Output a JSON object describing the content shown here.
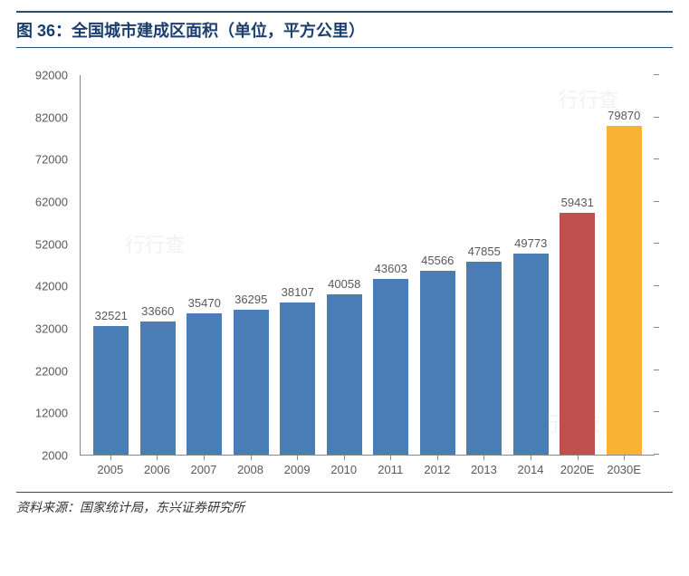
{
  "title": "图 36：全国城市建成区面积（单位，平方公里）",
  "source": "资料来源：国家统计局，东兴证券研究所",
  "chart": {
    "type": "bar",
    "categories": [
      "2005",
      "2006",
      "2007",
      "2008",
      "2009",
      "2010",
      "2011",
      "2012",
      "2013",
      "2014",
      "2020E",
      "2030E"
    ],
    "values": [
      32521,
      33660,
      35470,
      36295,
      38107,
      40058,
      43603,
      45566,
      47855,
      49773,
      59431,
      79870
    ],
    "bar_colors": [
      "#4a7db5",
      "#4a7db5",
      "#4a7db5",
      "#4a7db5",
      "#4a7db5",
      "#4a7db5",
      "#4a7db5",
      "#4a7db5",
      "#4a7db5",
      "#4a7db5",
      "#c0504d",
      "#f9b233"
    ],
    "ylim": [
      2000,
      92000
    ],
    "ytick_step": 10000,
    "background_color": "#ffffff",
    "axis_color": "#888888",
    "tick_label_color": "#595959",
    "tick_fontsize": 13,
    "data_label_fontsize": 13,
    "title_color": "#1a3e6e",
    "title_fontsize": 18,
    "bar_width_ratio": 0.76
  },
  "watermark_text": "行行查"
}
